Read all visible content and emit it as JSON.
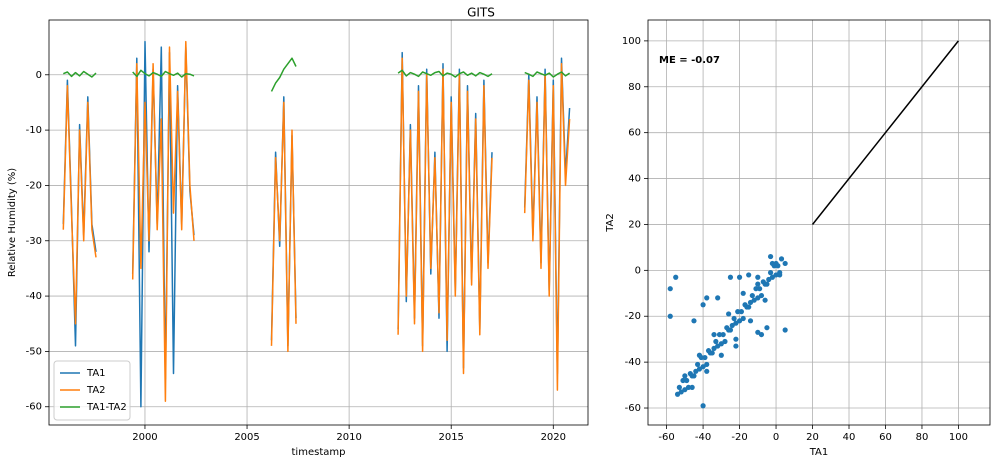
{
  "chart_data": [
    {
      "type": "line",
      "title": "GITS",
      "xlabel": "timestamp",
      "ylabel": "Relative Humidity (%)",
      "xlim": [
        1995.3,
        2021.7
      ],
      "xticks": [
        2000,
        2005,
        2010,
        2015,
        2020
      ],
      "ylim": [
        -63.3,
        9.9
      ],
      "yticks": [
        -60,
        -50,
        -40,
        -30,
        -20,
        -10,
        0
      ],
      "grid": true,
      "legend": "lower left",
      "x": [
        1996.0,
        1996.2,
        1996.4,
        1996.6,
        1996.8,
        1997.0,
        1997.2,
        1997.4,
        1997.6,
        1998.5,
        1999.4,
        1999.6,
        1999.8,
        2000.0,
        2000.2,
        2000.4,
        2000.6,
        2000.8,
        2001.0,
        2001.2,
        2001.4,
        2001.6,
        2001.8,
        2002.0,
        2002.2,
        2002.4,
        2004.3,
        2006.2,
        2006.4,
        2006.6,
        2006.8,
        2007.0,
        2007.2,
        2007.4,
        2009.8,
        2012.4,
        2012.6,
        2012.8,
        2013.0,
        2013.2,
        2013.4,
        2013.6,
        2013.8,
        2014.0,
        2014.2,
        2014.4,
        2014.6,
        2014.8,
        2015.0,
        2015.2,
        2015.4,
        2015.6,
        2015.8,
        2016.0,
        2016.2,
        2016.4,
        2016.6,
        2016.8,
        2017.0,
        2017.8,
        2018.6,
        2018.8,
        2019.0,
        2019.2,
        2019.4,
        2019.6,
        2019.8,
        2020.0,
        2020.2,
        2020.4,
        2020.6,
        2020.8
      ],
      "series": [
        {
          "name": "TA1",
          "color": "#1f77b4",
          "values": [
            -27,
            -1,
            -24,
            -49,
            -9,
            -29,
            -4,
            -27,
            -32,
            null,
            -36,
            3,
            -60,
            6,
            -32,
            1,
            -27,
            5,
            -55,
            4,
            -54,
            -2,
            -27,
            5,
            -21,
            -29,
            null,
            -48,
            -14,
            -31,
            -4,
            -49,
            -11,
            -44,
            null,
            -46,
            4,
            -41,
            -9,
            -44,
            -2,
            -49,
            1,
            -36,
            -14,
            -44,
            2,
            -50,
            -4,
            -39,
            1,
            -53,
            -2,
            -37,
            -7,
            -46,
            -1,
            -34,
            -14,
            null,
            -24,
            0,
            -29,
            -4,
            -34,
            1,
            -39,
            -1,
            -54,
            3,
            -18,
            -6
          ]
        },
        {
          "name": "TA2",
          "color": "#ff7f0e",
          "values": [
            -28,
            -2,
            -25,
            -45,
            -10,
            -30,
            -5,
            -28,
            -33,
            null,
            -37,
            2,
            -35,
            -5,
            -30,
            2,
            -28,
            -8,
            -59,
            5,
            -25,
            -3,
            -28,
            6,
            -20,
            -30,
            null,
            -49,
            -15,
            -30,
            -5,
            -50,
            -10,
            -45,
            null,
            -47,
            3,
            -40,
            -10,
            -45,
            -3,
            -50,
            0,
            -35,
            -15,
            -43,
            1,
            -48,
            -5,
            -40,
            0,
            -54,
            -3,
            -38,
            -8,
            -47,
            -2,
            -35,
            -15,
            null,
            -25,
            -1,
            -30,
            -5,
            -35,
            0,
            -40,
            -2,
            -57,
            2,
            -20,
            -8
          ]
        },
        {
          "name": "TA1-TA2",
          "color": "#2ca02c",
          "values": [
            0.2,
            0.5,
            -0.3,
            0.4,
            -0.2,
            0.6,
            0.1,
            -0.4,
            0.3,
            null,
            0.5,
            -0.3,
            0.8,
            0.2,
            -0.2,
            0.4,
            0.1,
            -0.3,
            0.6,
            0.2,
            -0.1,
            0.3,
            -0.4,
            0.2,
            0.1,
            -0.2,
            null,
            -3,
            -1.5,
            -0.5,
            1,
            2,
            3,
            1.5,
            null,
            0.3,
            0.8,
            -0.2,
            0.4,
            0.1,
            -0.3,
            0.5,
            0.2,
            -0.1,
            0.4,
            0.6,
            -0.2,
            0.3,
            0.1,
            -0.4,
            0.2,
            0.5,
            -0.1,
            0.3,
            -0.2,
            0.4,
            0.1,
            -0.3,
            0.2,
            null,
            0.4,
            0.1,
            -0.3,
            0.5,
            0.2,
            -0.1,
            0.3,
            -0.4,
            0.1,
            0.5,
            -0.2,
            0.3
          ]
        }
      ]
    },
    {
      "type": "scatter",
      "xlabel": "TA1",
      "ylabel": "TA2",
      "annotation": "ME = -0.07",
      "xlim": [
        -70.2,
        117.3
      ],
      "xticks": [
        -60,
        -40,
        -20,
        0,
        20,
        40,
        60,
        80,
        100
      ],
      "ylim": [
        -67.4,
        109.1
      ],
      "yticks": [
        -60,
        -40,
        -20,
        0,
        20,
        40,
        60,
        80,
        100
      ],
      "grid": true,
      "series": [
        {
          "color": "#1f77b4",
          "x": [
            -54,
            -53,
            -52,
            -51,
            -50,
            -49,
            -48,
            -47,
            -46,
            -45,
            -44,
            -43,
            -42,
            -41,
            -40,
            -39,
            -38,
            -37,
            -36,
            -35,
            -34,
            -33,
            -32,
            -31,
            -30,
            -29,
            -28,
            -27,
            -26,
            -25,
            -24,
            -23,
            -22,
            -21,
            -20,
            -19,
            -18,
            -17,
            -16,
            -15,
            -14,
            -13,
            -12,
            -11,
            -10,
            -9,
            -8,
            -7,
            -6,
            -5,
            -4,
            -3,
            -2,
            -1,
            0,
            1,
            2,
            3,
            -50,
            -46,
            -42,
            -38,
            -34,
            -30,
            -26,
            -22,
            -18,
            -14,
            -10,
            -6,
            -2,
            2,
            -58,
            -58,
            -55,
            -40,
            -40,
            -32,
            -25,
            -20,
            -15,
            -10,
            -3,
            0,
            5,
            5,
            -5,
            -10,
            -22,
            -45,
            -38,
            -8
          ],
          "values": [
            -54,
            -51,
            -53,
            -48,
            -52,
            -48,
            -51,
            -45,
            -46,
            -46,
            -44,
            -41,
            -43,
            -38,
            -42,
            -38,
            -41,
            -35,
            -36,
            -36,
            -34,
            -31,
            -33,
            -28,
            -32,
            -28,
            -31,
            -25,
            -26,
            -26,
            -24,
            -21,
            -23,
            -18,
            -22,
            -18,
            -21,
            -15,
            -16,
            -16,
            -14,
            -11,
            -13,
            -8,
            -12,
            -8,
            -11,
            -5,
            -6,
            -6,
            -4,
            -1,
            -3,
            2,
            -2,
            2,
            -1,
            5,
            -46,
            -51,
            -37,
            -44,
            -28,
            -37,
            -19,
            -30,
            -10,
            -22,
            -3,
            -13,
            3,
            -2,
            -8,
            -20,
            -3,
            -59,
            -15,
            -12,
            -3,
            -3,
            -2,
            -6,
            6,
            3,
            3,
            -26,
            -25,
            -27,
            -33,
            -22,
            -12,
            -28
          ]
        }
      ],
      "line": {
        "color": "#000000",
        "x": [
          20,
          100
        ],
        "values": [
          20,
          100
        ]
      }
    }
  ]
}
